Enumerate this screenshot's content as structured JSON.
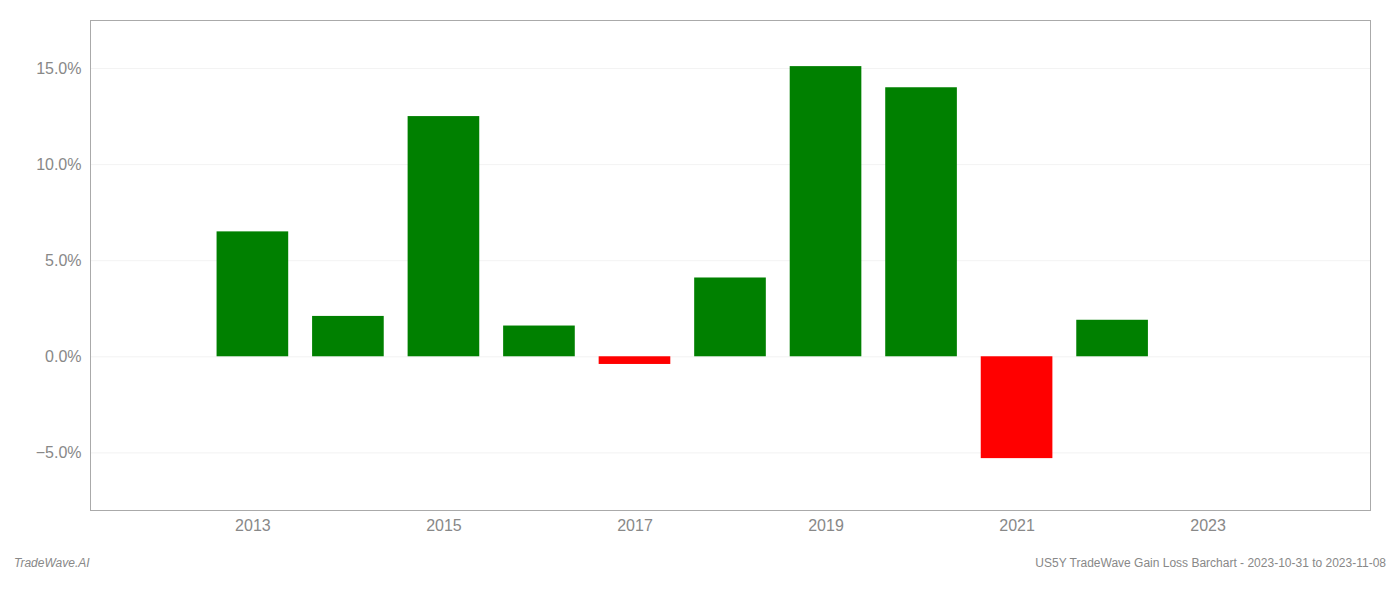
{
  "chart_data": {
    "type": "bar",
    "x": [
      2013,
      2014,
      2015,
      2016,
      2017,
      2018,
      2019,
      2020,
      2021,
      2022
    ],
    "values": [
      0.065,
      0.021,
      0.125,
      0.016,
      -0.004,
      0.041,
      0.151,
      0.14,
      -0.053,
      0.019
    ],
    "colors": [
      "#008000",
      "#008000",
      "#008000",
      "#008000",
      "#ff0000",
      "#008000",
      "#008000",
      "#008000",
      "#ff0000",
      "#008000"
    ],
    "xlim": [
      2011.3,
      2024.7
    ],
    "xticks": [
      2013,
      2015,
      2017,
      2019,
      2021,
      2023
    ],
    "ylim": [
      -0.08,
      0.175
    ],
    "yticks": [
      {
        "value": -0.05,
        "label": "−5.0%"
      },
      {
        "value": 0.0,
        "label": "0.0%"
      },
      {
        "value": 0.05,
        "label": "5.0%"
      },
      {
        "value": 0.1,
        "label": "10.0%"
      },
      {
        "value": 0.15,
        "label": "15.0%"
      }
    ],
    "grid": true,
    "annotations": [
      "TradeWave.AI",
      "US5Y TradeWave Gain Loss Barchart - 2023-10-31 to 2023-11-08"
    ]
  }
}
